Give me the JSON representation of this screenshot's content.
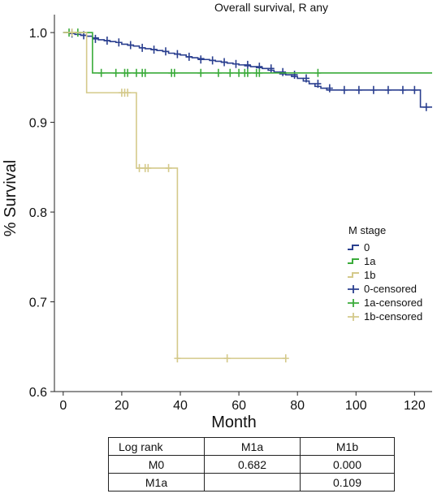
{
  "chart_data": {
    "type": "line",
    "step": true,
    "title": "Overall survival, R any",
    "xlabel": "Month",
    "ylabel": "% Survival",
    "xlim": [
      -3,
      126
    ],
    "ylim": [
      0.6,
      1.02
    ],
    "xticks": [
      0,
      20,
      40,
      60,
      80,
      100,
      120
    ],
    "yticks": [
      0.6,
      0.7,
      0.8,
      0.9,
      1.0
    ],
    "ytick_labels": [
      "0.6",
      "0.7",
      "0.8",
      "0.9",
      "1.0"
    ],
    "grid": false,
    "legend_title": "M stage",
    "legend_position": "right",
    "series": [
      {
        "name": "0",
        "censored_name": "0-censored",
        "color": "#2a3f8f",
        "x": [
          0,
          2,
          4,
          6,
          8,
          10,
          12,
          14,
          16,
          18,
          20,
          22,
          24,
          26,
          28,
          30,
          32,
          34,
          36,
          38,
          40,
          42,
          44,
          46,
          48,
          50,
          52,
          54,
          56,
          58,
          60,
          62,
          64,
          66,
          68,
          70,
          72,
          74,
          76,
          78,
          80,
          82,
          84,
          86,
          88,
          90,
          95,
          100,
          105,
          110,
          115,
          120,
          122,
          126
        ],
        "y": [
          1.0,
          0.999,
          0.998,
          0.997,
          0.996,
          0.994,
          0.992,
          0.991,
          0.99,
          0.989,
          0.987,
          0.986,
          0.985,
          0.983,
          0.982,
          0.981,
          0.98,
          0.979,
          0.977,
          0.976,
          0.975,
          0.973,
          0.972,
          0.971,
          0.97,
          0.969,
          0.968,
          0.967,
          0.966,
          0.965,
          0.964,
          0.963,
          0.962,
          0.961,
          0.96,
          0.958,
          0.956,
          0.954,
          0.953,
          0.951,
          0.949,
          0.946,
          0.943,
          0.94,
          0.938,
          0.936,
          0.936,
          0.936,
          0.936,
          0.936,
          0.936,
          0.936,
          0.917,
          0.917
        ],
        "censored_x": [
          3,
          7,
          11,
          15,
          19,
          23,
          27,
          31,
          35,
          39,
          43,
          47,
          51,
          55,
          59,
          63,
          67,
          71,
          75,
          79,
          83,
          87,
          91,
          96,
          101,
          106,
          111,
          116,
          120,
          124
        ],
        "censored_y": [
          0.999,
          0.997,
          0.993,
          0.991,
          0.989,
          0.986,
          0.983,
          0.981,
          0.979,
          0.976,
          0.973,
          0.97,
          0.969,
          0.967,
          0.965,
          0.964,
          0.962,
          0.96,
          0.956,
          0.953,
          0.949,
          0.943,
          0.938,
          0.936,
          0.936,
          0.936,
          0.936,
          0.936,
          0.936,
          0.917
        ]
      },
      {
        "name": "1a",
        "censored_name": "1a-censored",
        "color": "#3aab3a",
        "x": [
          0,
          10,
          126
        ],
        "y": [
          1.0,
          0.955,
          0.955
        ],
        "censored_x": [
          2,
          5,
          13,
          18,
          21,
          22,
          25,
          27,
          28,
          37,
          38,
          47,
          53,
          57,
          60,
          62,
          63,
          66,
          67,
          87
        ],
        "censored_y": [
          1.0,
          1.0,
          0.955,
          0.955,
          0.955,
          0.955,
          0.955,
          0.955,
          0.955,
          0.955,
          0.955,
          0.955,
          0.955,
          0.955,
          0.955,
          0.955,
          0.955,
          0.955,
          0.955,
          0.955
        ]
      },
      {
        "name": "1b",
        "censored_name": "1b-censored",
        "color": "#d4c98a",
        "x": [
          0,
          8,
          25,
          39,
          76
        ],
        "y": [
          1.0,
          0.933,
          0.849,
          0.637,
          0.637
        ],
        "censored_x": [
          3,
          20,
          21,
          22,
          26,
          28,
          29,
          36,
          39,
          56,
          76
        ],
        "censored_y": [
          1.0,
          0.933,
          0.933,
          0.933,
          0.849,
          0.849,
          0.849,
          0.849,
          0.637,
          0.637,
          0.637
        ]
      }
    ]
  },
  "stats_table": {
    "header": [
      "Log rank",
      "M1a",
      "M1b"
    ],
    "rows": [
      [
        "M0",
        "0.682",
        "0.000"
      ],
      [
        "M1a",
        "",
        "0.109"
      ]
    ]
  }
}
